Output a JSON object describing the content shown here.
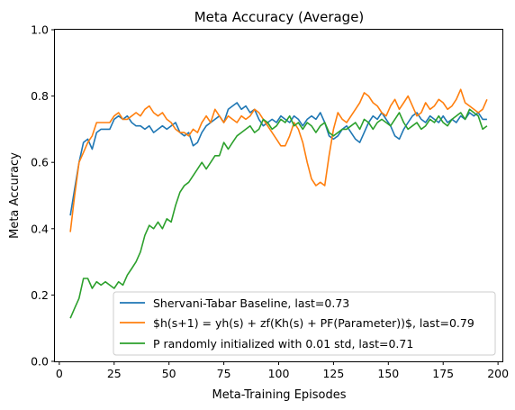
{
  "chart_data": {
    "type": "line",
    "title": "Meta Accuracy (Average)",
    "xlabel": "Meta-Training Episodes",
    "ylabel": "Meta Accuracy",
    "xlim": [
      -2,
      202
    ],
    "ylim": [
      0.0,
      1.0
    ],
    "xticks": [
      0,
      25,
      50,
      75,
      100,
      125,
      150,
      175,
      200
    ],
    "yticks": [
      0.0,
      0.2,
      0.4,
      0.6,
      0.8,
      1.0
    ],
    "legend_position": "lower-right",
    "grid": false,
    "series": [
      {
        "name": "Shervani-Tabar Baseline, last=0.73",
        "color": "#1f77b4",
        "points": [
          [
            5,
            0.44
          ],
          [
            7,
            0.52
          ],
          [
            9,
            0.6
          ],
          [
            11,
            0.66
          ],
          [
            13,
            0.67
          ],
          [
            15,
            0.64
          ],
          [
            17,
            0.69
          ],
          [
            19,
            0.7
          ],
          [
            21,
            0.7
          ],
          [
            23,
            0.7
          ],
          [
            25,
            0.73
          ],
          [
            27,
            0.74
          ],
          [
            29,
            0.73
          ],
          [
            31,
            0.74
          ],
          [
            33,
            0.72
          ],
          [
            35,
            0.71
          ],
          [
            37,
            0.71
          ],
          [
            39,
            0.7
          ],
          [
            41,
            0.71
          ],
          [
            43,
            0.69
          ],
          [
            45,
            0.7
          ],
          [
            47,
            0.71
          ],
          [
            49,
            0.7
          ],
          [
            51,
            0.71
          ],
          [
            53,
            0.72
          ],
          [
            55,
            0.69
          ],
          [
            57,
            0.68
          ],
          [
            59,
            0.69
          ],
          [
            61,
            0.65
          ],
          [
            63,
            0.66
          ],
          [
            65,
            0.69
          ],
          [
            67,
            0.71
          ],
          [
            69,
            0.72
          ],
          [
            71,
            0.73
          ],
          [
            73,
            0.74
          ],
          [
            75,
            0.72
          ],
          [
            77,
            0.76
          ],
          [
            79,
            0.77
          ],
          [
            81,
            0.78
          ],
          [
            83,
            0.76
          ],
          [
            85,
            0.77
          ],
          [
            87,
            0.75
          ],
          [
            89,
            0.76
          ],
          [
            91,
            0.73
          ],
          [
            93,
            0.71
          ],
          [
            95,
            0.72
          ],
          [
            97,
            0.73
          ],
          [
            99,
            0.72
          ],
          [
            101,
            0.74
          ],
          [
            103,
            0.73
          ],
          [
            105,
            0.72
          ],
          [
            107,
            0.74
          ],
          [
            109,
            0.73
          ],
          [
            111,
            0.71
          ],
          [
            113,
            0.73
          ],
          [
            115,
            0.74
          ],
          [
            117,
            0.73
          ],
          [
            119,
            0.75
          ],
          [
            121,
            0.72
          ],
          [
            123,
            0.68
          ],
          [
            125,
            0.67
          ],
          [
            127,
            0.68
          ],
          [
            129,
            0.7
          ],
          [
            131,
            0.71
          ],
          [
            133,
            0.69
          ],
          [
            135,
            0.67
          ],
          [
            137,
            0.66
          ],
          [
            139,
            0.69
          ],
          [
            141,
            0.72
          ],
          [
            143,
            0.74
          ],
          [
            145,
            0.73
          ],
          [
            147,
            0.75
          ],
          [
            149,
            0.73
          ],
          [
            151,
            0.71
          ],
          [
            153,
            0.68
          ],
          [
            155,
            0.67
          ],
          [
            157,
            0.7
          ],
          [
            159,
            0.72
          ],
          [
            161,
            0.74
          ],
          [
            163,
            0.75
          ],
          [
            165,
            0.73
          ],
          [
            167,
            0.72
          ],
          [
            169,
            0.74
          ],
          [
            171,
            0.73
          ],
          [
            173,
            0.72
          ],
          [
            175,
            0.74
          ],
          [
            177,
            0.72
          ],
          [
            179,
            0.73
          ],
          [
            181,
            0.72
          ],
          [
            183,
            0.74
          ],
          [
            185,
            0.73
          ],
          [
            187,
            0.75
          ],
          [
            189,
            0.74
          ],
          [
            191,
            0.75
          ],
          [
            193,
            0.73
          ],
          [
            195,
            0.73
          ]
        ]
      },
      {
        "name": "$h(s+1) = yh(s) + zf(Kh(s) + PF(Parameter))$, last=0.79",
        "color": "#ff7f0e",
        "points": [
          [
            5,
            0.39
          ],
          [
            7,
            0.5
          ],
          [
            9,
            0.6
          ],
          [
            11,
            0.63
          ],
          [
            13,
            0.66
          ],
          [
            15,
            0.68
          ],
          [
            17,
            0.72
          ],
          [
            19,
            0.72
          ],
          [
            21,
            0.72
          ],
          [
            23,
            0.72
          ],
          [
            25,
            0.74
          ],
          [
            27,
            0.75
          ],
          [
            29,
            0.73
          ],
          [
            31,
            0.73
          ],
          [
            33,
            0.74
          ],
          [
            35,
            0.75
          ],
          [
            37,
            0.74
          ],
          [
            39,
            0.76
          ],
          [
            41,
            0.77
          ],
          [
            43,
            0.75
          ],
          [
            45,
            0.74
          ],
          [
            47,
            0.75
          ],
          [
            49,
            0.73
          ],
          [
            51,
            0.72
          ],
          [
            53,
            0.7
          ],
          [
            55,
            0.69
          ],
          [
            57,
            0.69
          ],
          [
            59,
            0.68
          ],
          [
            61,
            0.7
          ],
          [
            63,
            0.69
          ],
          [
            65,
            0.72
          ],
          [
            67,
            0.74
          ],
          [
            69,
            0.72
          ],
          [
            71,
            0.76
          ],
          [
            73,
            0.74
          ],
          [
            75,
            0.72
          ],
          [
            77,
            0.74
          ],
          [
            79,
            0.73
          ],
          [
            81,
            0.72
          ],
          [
            83,
            0.74
          ],
          [
            85,
            0.73
          ],
          [
            87,
            0.74
          ],
          [
            89,
            0.76
          ],
          [
            91,
            0.75
          ],
          [
            93,
            0.73
          ],
          [
            95,
            0.71
          ],
          [
            97,
            0.69
          ],
          [
            99,
            0.67
          ],
          [
            101,
            0.65
          ],
          [
            103,
            0.65
          ],
          [
            105,
            0.68
          ],
          [
            107,
            0.72
          ],
          [
            109,
            0.7
          ],
          [
            111,
            0.66
          ],
          [
            113,
            0.6
          ],
          [
            115,
            0.55
          ],
          [
            117,
            0.53
          ],
          [
            119,
            0.54
          ],
          [
            121,
            0.53
          ],
          [
            123,
            0.62
          ],
          [
            125,
            0.7
          ],
          [
            127,
            0.75
          ],
          [
            129,
            0.73
          ],
          [
            131,
            0.72
          ],
          [
            133,
            0.74
          ],
          [
            135,
            0.76
          ],
          [
            137,
            0.78
          ],
          [
            139,
            0.81
          ],
          [
            141,
            0.8
          ],
          [
            143,
            0.78
          ],
          [
            145,
            0.77
          ],
          [
            147,
            0.75
          ],
          [
            149,
            0.74
          ],
          [
            151,
            0.77
          ],
          [
            153,
            0.79
          ],
          [
            155,
            0.76
          ],
          [
            157,
            0.78
          ],
          [
            159,
            0.8
          ],
          [
            161,
            0.77
          ],
          [
            163,
            0.74
          ],
          [
            165,
            0.75
          ],
          [
            167,
            0.78
          ],
          [
            169,
            0.76
          ],
          [
            171,
            0.77
          ],
          [
            173,
            0.79
          ],
          [
            175,
            0.78
          ],
          [
            177,
            0.76
          ],
          [
            179,
            0.77
          ],
          [
            181,
            0.79
          ],
          [
            183,
            0.82
          ],
          [
            185,
            0.78
          ],
          [
            187,
            0.77
          ],
          [
            189,
            0.76
          ],
          [
            191,
            0.75
          ],
          [
            193,
            0.76
          ],
          [
            195,
            0.79
          ]
        ]
      },
      {
        "name": "P randomly initialized with 0.01 std, last=0.71",
        "color": "#2ca02c",
        "points": [
          [
            5,
            0.13
          ],
          [
            7,
            0.16
          ],
          [
            9,
            0.19
          ],
          [
            11,
            0.25
          ],
          [
            13,
            0.25
          ],
          [
            15,
            0.22
          ],
          [
            17,
            0.24
          ],
          [
            19,
            0.23
          ],
          [
            21,
            0.24
          ],
          [
            23,
            0.23
          ],
          [
            25,
            0.22
          ],
          [
            27,
            0.24
          ],
          [
            29,
            0.23
          ],
          [
            31,
            0.26
          ],
          [
            33,
            0.28
          ],
          [
            35,
            0.3
          ],
          [
            37,
            0.33
          ],
          [
            39,
            0.38
          ],
          [
            41,
            0.41
          ],
          [
            43,
            0.4
          ],
          [
            45,
            0.42
          ],
          [
            47,
            0.4
          ],
          [
            49,
            0.43
          ],
          [
            51,
            0.42
          ],
          [
            53,
            0.47
          ],
          [
            55,
            0.51
          ],
          [
            57,
            0.53
          ],
          [
            59,
            0.54
          ],
          [
            61,
            0.56
          ],
          [
            63,
            0.58
          ],
          [
            65,
            0.6
          ],
          [
            67,
            0.58
          ],
          [
            69,
            0.6
          ],
          [
            71,
            0.62
          ],
          [
            73,
            0.62
          ],
          [
            75,
            0.66
          ],
          [
            77,
            0.64
          ],
          [
            79,
            0.66
          ],
          [
            81,
            0.68
          ],
          [
            83,
            0.69
          ],
          [
            85,
            0.7
          ],
          [
            87,
            0.71
          ],
          [
            89,
            0.69
          ],
          [
            91,
            0.7
          ],
          [
            93,
            0.73
          ],
          [
            95,
            0.72
          ],
          [
            97,
            0.7
          ],
          [
            99,
            0.71
          ],
          [
            101,
            0.73
          ],
          [
            103,
            0.72
          ],
          [
            105,
            0.74
          ],
          [
            107,
            0.71
          ],
          [
            109,
            0.72
          ],
          [
            111,
            0.7
          ],
          [
            113,
            0.72
          ],
          [
            115,
            0.71
          ],
          [
            117,
            0.69
          ],
          [
            119,
            0.71
          ],
          [
            121,
            0.72
          ],
          [
            123,
            0.69
          ],
          [
            125,
            0.68
          ],
          [
            127,
            0.69
          ],
          [
            129,
            0.7
          ],
          [
            131,
            0.7
          ],
          [
            133,
            0.71
          ],
          [
            135,
            0.72
          ],
          [
            137,
            0.7
          ],
          [
            139,
            0.73
          ],
          [
            141,
            0.72
          ],
          [
            143,
            0.7
          ],
          [
            145,
            0.72
          ],
          [
            147,
            0.73
          ],
          [
            149,
            0.72
          ],
          [
            151,
            0.71
          ],
          [
            153,
            0.73
          ],
          [
            155,
            0.75
          ],
          [
            157,
            0.72
          ],
          [
            159,
            0.7
          ],
          [
            161,
            0.71
          ],
          [
            163,
            0.72
          ],
          [
            165,
            0.7
          ],
          [
            167,
            0.71
          ],
          [
            169,
            0.73
          ],
          [
            171,
            0.72
          ],
          [
            173,
            0.74
          ],
          [
            175,
            0.72
          ],
          [
            177,
            0.71
          ],
          [
            179,
            0.73
          ],
          [
            181,
            0.74
          ],
          [
            183,
            0.75
          ],
          [
            185,
            0.73
          ],
          [
            187,
            0.76
          ],
          [
            189,
            0.75
          ],
          [
            191,
            0.74
          ],
          [
            193,
            0.7
          ],
          [
            195,
            0.71
          ]
        ]
      }
    ]
  }
}
